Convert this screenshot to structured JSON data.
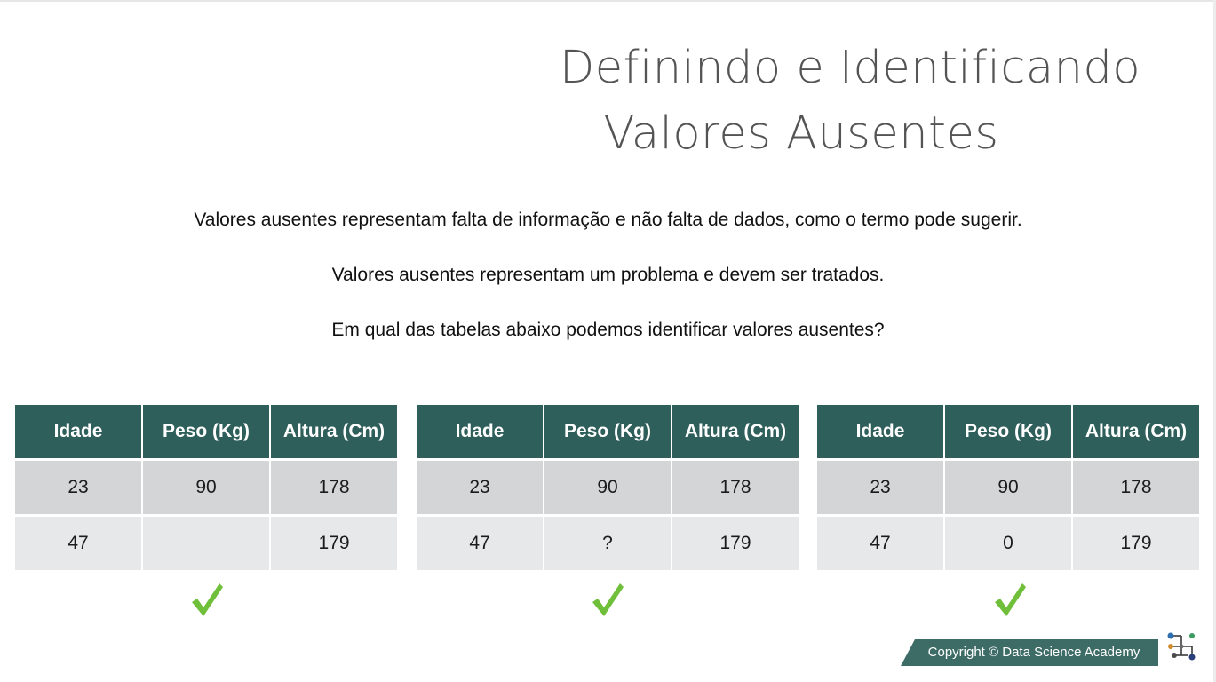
{
  "slide": {
    "title_line1": "Definindo e Identificando",
    "title_line2": "Valores Ausentes",
    "paragraphs": [
      "Valores ausentes representam falta de informação e não falta de dados, como o termo pode sugerir.",
      "Valores ausentes representam um problema e devem ser tratados.",
      "Em qual das tabelas abaixo podemos identificar valores ausentes?"
    ]
  },
  "tables": [
    {
      "headers": [
        "Idade",
        "Peso (Kg)",
        "Altura (Cm)"
      ],
      "rows": [
        [
          "23",
          "90",
          "178"
        ],
        [
          "47",
          "",
          "179"
        ]
      ]
    },
    {
      "headers": [
        "Idade",
        "Peso (Kg)",
        "Altura (Cm)"
      ],
      "rows": [
        [
          "23",
          "90",
          "178"
        ],
        [
          "47",
          "?",
          "179"
        ]
      ]
    },
    {
      "headers": [
        "Idade",
        "Peso (Kg)",
        "Altura (Cm)"
      ],
      "rows": [
        [
          "23",
          "90",
          "178"
        ],
        [
          "47",
          "0",
          "179"
        ]
      ]
    }
  ],
  "footer": {
    "copyright": "Copyright © Data Science Academy"
  },
  "icons": {
    "check": "check-mark-icon",
    "logo": "dsa-logo-icon"
  },
  "colors": {
    "header_bg": "#2f5f5a",
    "row1_bg": "#d3d5d6",
    "row2_bg": "#e7e8e9",
    "check": "#6fbf3a",
    "footer_bg": "#3d6b66"
  }
}
